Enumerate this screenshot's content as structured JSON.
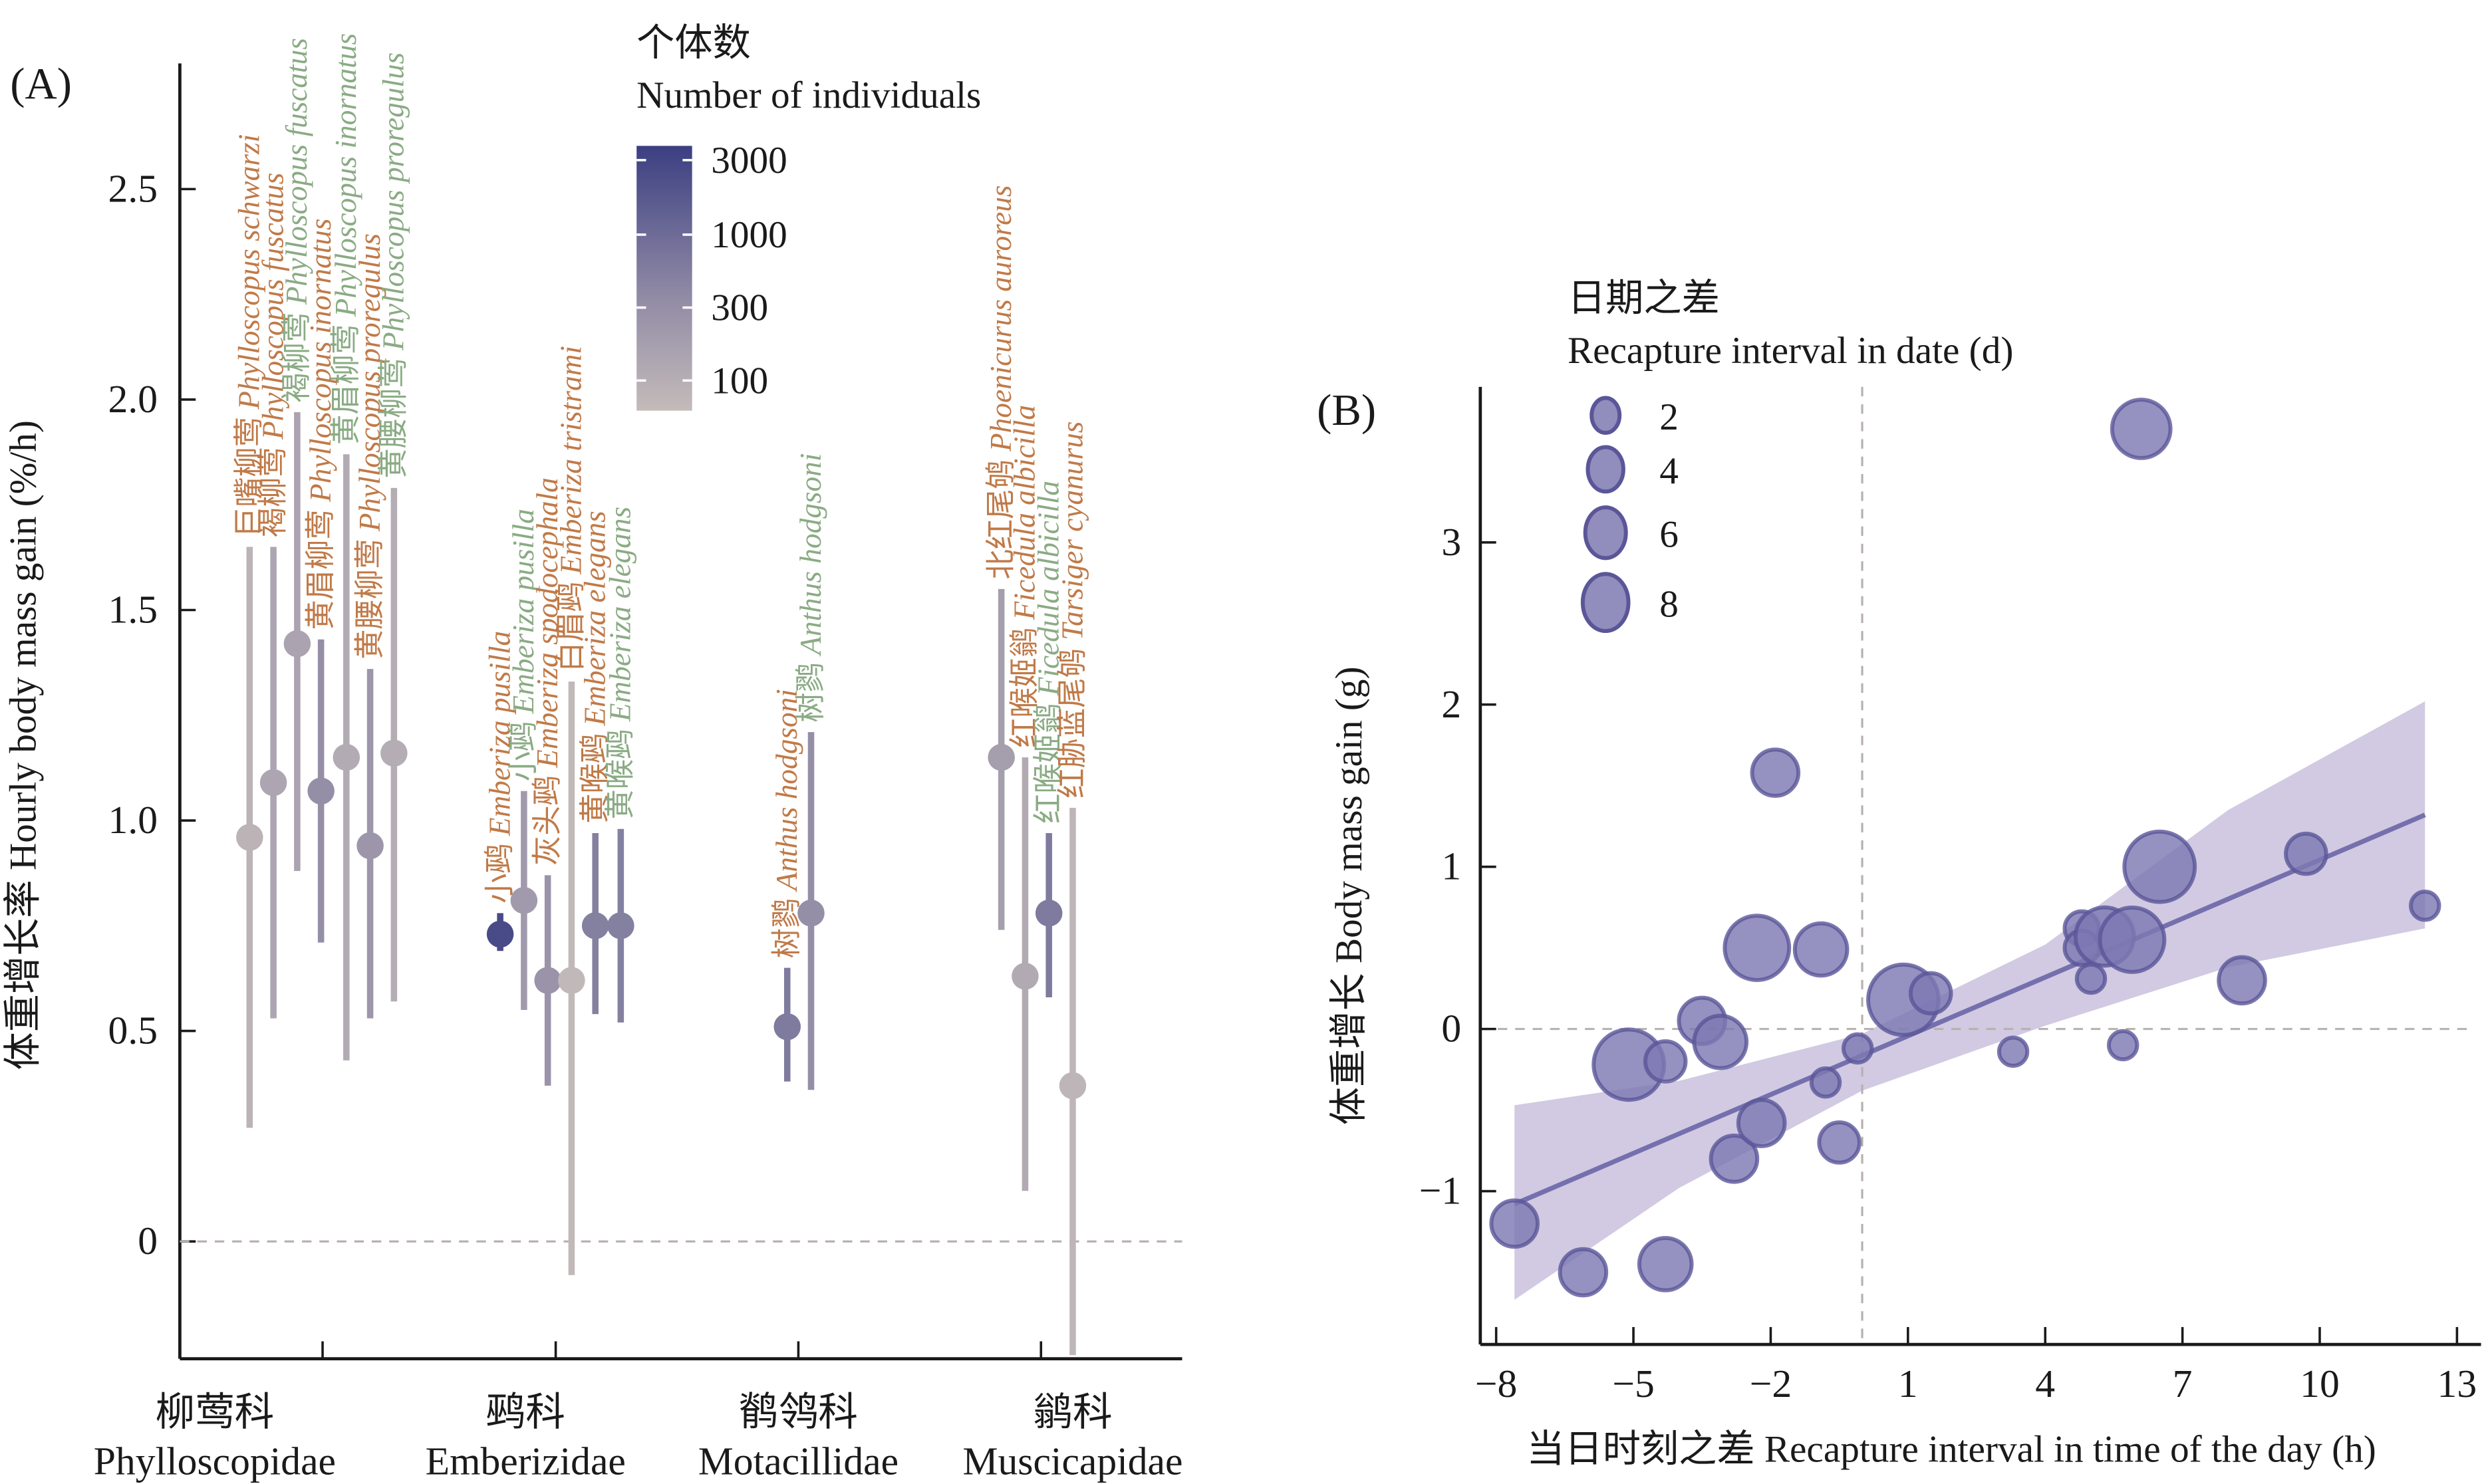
{
  "colors": {
    "orange_label": "#c07a48",
    "green_label": "#8aab84",
    "low_count": "#c4bbba",
    "high_count": "#3b3f82",
    "bubble_fill": "#7e79b2",
    "bubble_stroke": "#5a5698",
    "ci_band": "#cfc7e0",
    "fit_line": "#7570ad",
    "ref_line": "#b8aeae",
    "axis": "#1a1a1a"
  },
  "chart_data": [
    {
      "id": "A",
      "type": "scatter",
      "subtype": "point-range",
      "panel_label": "(A)",
      "ylabel": "体重增长率 Hourly body mass gain (%/h)",
      "xlabel": "",
      "ylim": [
        -0.27,
        2.77
      ],
      "yticks": [
        0,
        0.5,
        1.0,
        1.5,
        2.0,
        2.5
      ],
      "ytick_labels": [
        "0",
        "0.5",
        "1.0",
        "1.5",
        "2.0",
        "2.5"
      ],
      "reference_line_y": 0,
      "families": [
        {
          "zh": "柳莺科",
          "en": "Phylloscopidae"
        },
        {
          "zh": "鹀科",
          "en": "Emberizidae"
        },
        {
          "zh": "鹡鸰科",
          "en": "Motacillidae"
        },
        {
          "zh": "鹟科",
          "en": "Muscicapidae"
        }
      ],
      "color_legend": {
        "title_zh": "个体数",
        "title_en": "Number of individuals",
        "scale": "log",
        "ticks": [
          3000,
          1000,
          300,
          100
        ],
        "tick_labels": [
          "3000",
          "1000",
          "300",
          "100"
        ],
        "range": [
          70,
          4000
        ]
      },
      "series": [
        {
          "family": 0,
          "zh": "巨嘴柳莺",
          "latin": "Phylloscopus schwarzi",
          "label_color": "orange",
          "mean": 0.96,
          "lower": 0.27,
          "upper": 1.65,
          "n": 100
        },
        {
          "family": 0,
          "zh": "褐柳莺",
          "latin": "Phylloscopus fuscatus",
          "label_color": "orange",
          "mean": 1.09,
          "lower": 0.53,
          "upper": 1.65,
          "n": 180
        },
        {
          "family": 0,
          "zh": "褐柳莺",
          "latin": "Phylloscopus fuscatus",
          "label_color": "green",
          "mean": 1.42,
          "lower": 0.88,
          "upper": 1.97,
          "n": 200
        },
        {
          "family": 0,
          "zh": "黄眉柳莺",
          "latin": "Phylloscopus inornatus",
          "label_color": "orange",
          "mean": 1.07,
          "lower": 0.71,
          "upper": 1.43,
          "n": 500
        },
        {
          "family": 0,
          "zh": "黄眉柳莺",
          "latin": "Phylloscopus inornatus",
          "label_color": "green",
          "mean": 1.15,
          "lower": 0.43,
          "upper": 1.87,
          "n": 140
        },
        {
          "family": 0,
          "zh": "黄腰柳莺",
          "latin": "Phylloscopus proregulus",
          "label_color": "orange",
          "mean": 0.94,
          "lower": 0.53,
          "upper": 1.36,
          "n": 350
        },
        {
          "family": 0,
          "zh": "黄腰柳莺",
          "latin": "Phylloscopus proregulus",
          "label_color": "green",
          "mean": 1.16,
          "lower": 0.57,
          "upper": 1.79,
          "n": 130
        },
        {
          "family": 1,
          "zh": "小鹀",
          "latin": "Emberiza pusilla",
          "label_color": "orange",
          "mean": 0.73,
          "lower": 0.69,
          "upper": 0.78,
          "n": 3000
        },
        {
          "family": 1,
          "zh": "小鹀",
          "latin": "Emberiza pusilla",
          "label_color": "green",
          "mean": 0.81,
          "lower": 0.55,
          "upper": 1.07,
          "n": 300
        },
        {
          "family": 1,
          "zh": "灰头鹀",
          "latin": "Emberiza spodocephala",
          "label_color": "orange",
          "mean": 0.62,
          "lower": 0.37,
          "upper": 0.87,
          "n": 400
        },
        {
          "family": 1,
          "zh": "白眉鹀",
          "latin": "Emberiza tristrami",
          "label_color": "orange",
          "mean": 0.62,
          "lower": -0.08,
          "upper": 1.33,
          "n": 80
        },
        {
          "family": 1,
          "zh": "黄喉鹀",
          "latin": "Emberiza elegans",
          "label_color": "orange",
          "mean": 0.75,
          "lower": 0.54,
          "upper": 0.97,
          "n": 800
        },
        {
          "family": 1,
          "zh": "黄喉鹀",
          "latin": "Emberiza elegans",
          "label_color": "green",
          "mean": 0.75,
          "lower": 0.52,
          "upper": 0.98,
          "n": 800
        },
        {
          "family": 2,
          "zh": "树鹨",
          "latin": "Anthus hodgsoni",
          "label_color": "orange",
          "mean": 0.51,
          "lower": 0.38,
          "upper": 0.65,
          "n": 900
        },
        {
          "family": 2,
          "zh": "树鹨",
          "latin": "Anthus hodgsoni",
          "label_color": "green",
          "mean": 0.78,
          "lower": 0.36,
          "upper": 1.21,
          "n": 500
        },
        {
          "family": 3,
          "zh": "北红尾鸲",
          "latin": "Phoenicurus auroreus",
          "label_color": "orange",
          "mean": 1.15,
          "lower": 0.74,
          "upper": 1.55,
          "n": 250
        },
        {
          "family": 3,
          "zh": "红喉姬鹟",
          "latin": "Ficedula albicilla",
          "label_color": "orange",
          "mean": 0.63,
          "lower": 0.12,
          "upper": 1.15,
          "n": 150
        },
        {
          "family": 3,
          "zh": "红喉姬鹟",
          "latin": "Ficedula albicilla",
          "label_color": "green",
          "mean": 0.78,
          "lower": 0.58,
          "upper": 0.97,
          "n": 900
        },
        {
          "family": 3,
          "zh": "红胁蓝尾鸲",
          "latin": "Tarsiger cyanurus",
          "label_color": "orange",
          "mean": 0.37,
          "lower": -0.27,
          "upper": 1.03,
          "n": 90
        }
      ]
    },
    {
      "id": "B",
      "type": "scatter",
      "subtype": "bubble-with-regression",
      "panel_label": "(B)",
      "xlabel": "当日时刻之差 Recapture interval in time of the day (h)",
      "ylabel": "体重增长 Body mass gain (g)",
      "xlim": [
        -9.2,
        13.2
      ],
      "ylim": [
        -1.95,
        3.95
      ],
      "xticks": [
        -8,
        -5,
        -2,
        1,
        4,
        7,
        10,
        13
      ],
      "xtick_labels": [
        "−8",
        "−5",
        "−2",
        "1",
        "4",
        "7",
        "10",
        "13"
      ],
      "yticks": [
        -1,
        0,
        1,
        2,
        3
      ],
      "ytick_labels": [
        "−1",
        "0",
        "1",
        "2",
        "3"
      ],
      "reference_line_y": 0,
      "reference_line_x": 0,
      "size_legend": {
        "title_zh": "日期之差",
        "title_en": "Recapture interval in date (d)",
        "values": [
          2,
          4,
          6,
          8
        ],
        "labels": [
          "2",
          "4",
          "6",
          "8"
        ]
      },
      "regression": {
        "x_range": [
          -7.6,
          12.3
        ],
        "y_start": -1.08,
        "y_end": 1.32,
        "ci_upper": [
          [
            -7.6,
            -0.47
          ],
          [
            -4,
            -0.32
          ],
          [
            0,
            -0.03
          ],
          [
            4,
            0.52
          ],
          [
            8,
            1.35
          ],
          [
            12.3,
            2.02
          ]
        ],
        "ci_lower": [
          [
            -7.6,
            -1.67
          ],
          [
            -4,
            -0.98
          ],
          [
            0,
            -0.38
          ],
          [
            4,
            0.02
          ],
          [
            8,
            0.38
          ],
          [
            12.3,
            0.62
          ]
        ]
      },
      "points": [
        {
          "x": -7.6,
          "y": -1.2,
          "d": 4
        },
        {
          "x": -6.1,
          "y": -1.5,
          "d": 4
        },
        {
          "x": -4.3,
          "y": -1.45,
          "d": 5
        },
        {
          "x": -5.1,
          "y": -0.22,
          "d": 8
        },
        {
          "x": -4.3,
          "y": -0.2,
          "d": 3
        },
        {
          "x": -3.5,
          "y": 0.05,
          "d": 4
        },
        {
          "x": -3.1,
          "y": -0.08,
          "d": 5
        },
        {
          "x": -2.3,
          "y": 0.5,
          "d": 7
        },
        {
          "x": -0.9,
          "y": 0.49,
          "d": 5
        },
        {
          "x": -1.9,
          "y": 1.58,
          "d": 4
        },
        {
          "x": -2.8,
          "y": -0.8,
          "d": 4
        },
        {
          "x": -2.2,
          "y": -0.58,
          "d": 4
        },
        {
          "x": -0.8,
          "y": -0.33,
          "d": 1
        },
        {
          "x": -0.5,
          "y": -0.7,
          "d": 3
        },
        {
          "x": -0.1,
          "y": -0.12,
          "d": 1
        },
        {
          "x": 0.9,
          "y": 0.18,
          "d": 8
        },
        {
          "x": 1.5,
          "y": 0.22,
          "d": 3
        },
        {
          "x": 3.3,
          "y": -0.14,
          "d": 1
        },
        {
          "x": 4.8,
          "y": 0.62,
          "d": 2
        },
        {
          "x": 4.8,
          "y": 0.5,
          "d": 2
        },
        {
          "x": 5.3,
          "y": 0.57,
          "d": 6
        },
        {
          "x": 5.0,
          "y": 0.31,
          "d": 1
        },
        {
          "x": 5.9,
          "y": 0.55,
          "d": 7
        },
        {
          "x": 5.7,
          "y": -0.1,
          "d": 1
        },
        {
          "x": 6.5,
          "y": 1.0,
          "d": 8
        },
        {
          "x": 6.1,
          "y": 3.7,
          "d": 6
        },
        {
          "x": 8.3,
          "y": 0.3,
          "d": 4
        },
        {
          "x": 9.7,
          "y": 1.08,
          "d": 3
        },
        {
          "x": 12.3,
          "y": 0.76,
          "d": 1
        }
      ]
    }
  ]
}
